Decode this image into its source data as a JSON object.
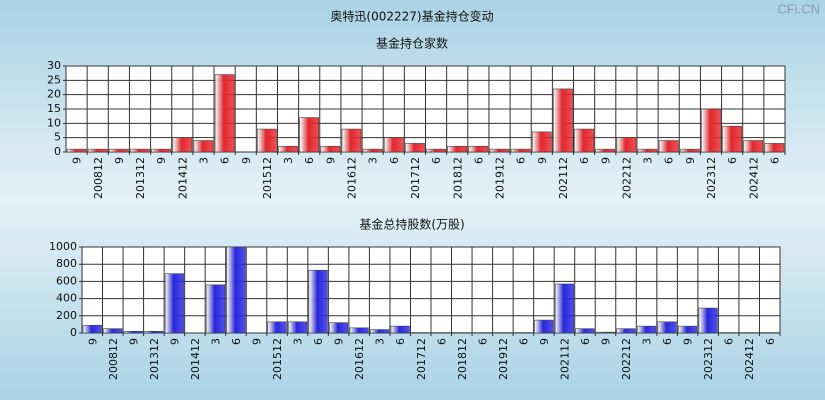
{
  "title": "奥特迅(002227)基金持仓变动",
  "watermark": "CFi.CN",
  "chart_data": [
    {
      "type": "bar",
      "title": "基金持仓家数",
      "categories": [
        "9",
        "200812",
        "9",
        "201312",
        "9",
        "201412",
        "3",
        "6",
        "9",
        "201512",
        "3",
        "6",
        "9",
        "201612",
        "3",
        "6",
        "201712",
        "6",
        "201812",
        "6",
        "201912",
        "6",
        "9",
        "202112",
        "6",
        "9",
        "202212",
        "3",
        "6",
        "9",
        "202312",
        "6",
        "202412",
        "6"
      ],
      "values": [
        1,
        1,
        1,
        1,
        1,
        5,
        4,
        27,
        0,
        8,
        2,
        12,
        2,
        8,
        1,
        5,
        3,
        1,
        2,
        2,
        1,
        1,
        7,
        22,
        8,
        1,
        5,
        1,
        4,
        1,
        15,
        9,
        4,
        3
      ],
      "color": "#e3262c",
      "ylim": [
        0,
        30
      ],
      "yticks": [
        0,
        5,
        10,
        15,
        20,
        25,
        30
      ],
      "grid": true
    },
    {
      "type": "bar",
      "title": "基金总持股数(万股)",
      "categories": [
        "9",
        "200812",
        "9",
        "201312",
        "9",
        "201412",
        "3",
        "6",
        "9",
        "201512",
        "3",
        "6",
        "9",
        "201612",
        "3",
        "6",
        "201712",
        "6",
        "201812",
        "6",
        "201912",
        "6",
        "9",
        "202112",
        "6",
        "9",
        "202212",
        "3",
        "6",
        "9",
        "202312",
        "6",
        "202412",
        "6"
      ],
      "values": [
        90,
        50,
        20,
        20,
        690,
        0,
        560,
        1000,
        0,
        130,
        130,
        730,
        120,
        60,
        40,
        80,
        5,
        5,
        5,
        5,
        5,
        5,
        150,
        570,
        50,
        10,
        50,
        80,
        130,
        80,
        290,
        5,
        5,
        5
      ],
      "color": "#2727dd",
      "ylim": [
        0,
        1000
      ],
      "yticks": [
        0,
        200,
        400,
        600,
        800,
        1000
      ],
      "grid": true
    }
  ]
}
